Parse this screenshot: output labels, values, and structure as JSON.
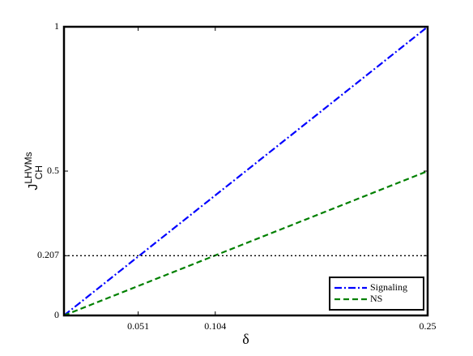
{
  "chart_data": {
    "type": "line",
    "xlabel": "δ",
    "ylabel": {
      "base": "J",
      "sub": "CH",
      "sup": "LHVMs"
    },
    "xlim": [
      0,
      0.25
    ],
    "ylim": [
      0,
      1
    ],
    "xticks": [
      0.051,
      0.104,
      0.25
    ],
    "yticks": [
      0,
      0.207,
      0.5,
      1
    ],
    "legend": "lower right",
    "series": [
      {
        "name": "Signaling",
        "color": "#0000ff",
        "style": "dashdot",
        "x": [
          0,
          0.25
        ],
        "values": [
          0,
          1
        ]
      },
      {
        "name": "NS",
        "color": "#008000",
        "style": "dashed",
        "x": [
          0,
          0.25
        ],
        "values": [
          0,
          0.5
        ]
      },
      {
        "color": "#000000",
        "style": "dotted",
        "x": [
          0,
          0.25
        ],
        "values": [
          0.207,
          0.207
        ]
      }
    ]
  }
}
